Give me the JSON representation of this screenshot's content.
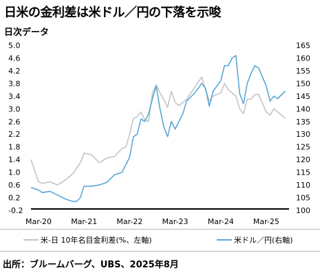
{
  "title": "日米の金利差は米ドル／円の下落を示唆",
  "subtitle": "日次データ",
  "source": "出所：ブルームバーグ、UBS、2025年8月",
  "chart_data": {
    "type": "line",
    "x_tick_labels": [
      "Mar-20",
      "Mar-21",
      "Mar-22",
      "Mar-23",
      "Mar-24",
      "Mar-25"
    ],
    "y_left": {
      "ticks": [
        "5.0",
        "4.6",
        "4.2",
        "3.8",
        "3.4",
        "3.0",
        "2.6",
        "2.2",
        "1.8",
        "1.4",
        "1.0",
        "0.6",
        "0.2",
        "-0.2"
      ],
      "ylim": [
        -0.2,
        5.0
      ]
    },
    "y_right": {
      "ticks": [
        "165",
        "160",
        "155",
        "150",
        "145",
        "140",
        "135",
        "130",
        "125",
        "120",
        "115",
        "110",
        "105",
        "100"
      ],
      "ylim": [
        100,
        165
      ]
    },
    "grid": false,
    "legend_position": "bottom",
    "series": [
      {
        "name": "米-日 10年名目金利差(%、左軸)",
        "axis": "left",
        "color": "#c4c4c4",
        "points": [
          [
            "2020-01",
            1.4
          ],
          [
            "2020-03",
            0.7
          ],
          [
            "2020-04",
            0.65
          ],
          [
            "2020-06",
            0.7
          ],
          [
            "2020-08",
            0.6
          ],
          [
            "2020-10",
            0.75
          ],
          [
            "2020-12",
            0.95
          ],
          [
            "2021-02",
            1.3
          ],
          [
            "2021-03",
            1.6
          ],
          [
            "2021-05",
            1.55
          ],
          [
            "2021-07",
            1.3
          ],
          [
            "2021-09",
            1.45
          ],
          [
            "2021-11",
            1.5
          ],
          [
            "2022-01",
            1.75
          ],
          [
            "2022-02",
            1.8
          ],
          [
            "2022-03",
            2.2
          ],
          [
            "2022-04",
            2.7
          ],
          [
            "2022-05",
            2.75
          ],
          [
            "2022-06",
            2.9
          ],
          [
            "2022-07",
            2.65
          ],
          [
            "2022-08",
            2.6
          ],
          [
            "2022-09",
            3.5
          ],
          [
            "2022-10",
            3.75
          ],
          [
            "2022-11",
            3.5
          ],
          [
            "2022-12",
            3.3
          ],
          [
            "2023-01",
            3.05
          ],
          [
            "2023-02",
            3.55
          ],
          [
            "2023-03",
            3.2
          ],
          [
            "2023-04",
            3.1
          ],
          [
            "2023-06",
            3.3
          ],
          [
            "2023-08",
            3.65
          ],
          [
            "2023-10",
            4.0
          ],
          [
            "2023-11",
            3.6
          ],
          [
            "2023-12",
            3.25
          ],
          [
            "2024-01",
            3.4
          ],
          [
            "2024-03",
            3.5
          ],
          [
            "2024-04",
            3.8
          ],
          [
            "2024-05",
            3.6
          ],
          [
            "2024-07",
            3.4
          ],
          [
            "2024-08",
            3.0
          ],
          [
            "2024-09",
            2.85
          ],
          [
            "2024-10",
            3.3
          ],
          [
            "2024-11",
            3.3
          ],
          [
            "2024-12",
            3.45
          ],
          [
            "2025-01",
            3.45
          ],
          [
            "2025-03",
            2.9
          ],
          [
            "2025-04",
            2.8
          ],
          [
            "2025-05",
            3.0
          ],
          [
            "2025-06",
            2.9
          ],
          [
            "2025-08",
            2.7
          ]
        ]
      },
      {
        "name": "米ドル／円(右軸)",
        "axis": "right",
        "color": "#5aa6d6",
        "points": [
          [
            "2020-01",
            109
          ],
          [
            "2020-03",
            108
          ],
          [
            "2020-04",
            107
          ],
          [
            "2020-06",
            107.5
          ],
          [
            "2020-08",
            106
          ],
          [
            "2020-10",
            104.5
          ],
          [
            "2020-12",
            103.5
          ],
          [
            "2021-01",
            103.5
          ],
          [
            "2021-02",
            105
          ],
          [
            "2021-03",
            109.5
          ],
          [
            "2021-05",
            109.5
          ],
          [
            "2021-07",
            110
          ],
          [
            "2021-09",
            111
          ],
          [
            "2021-11",
            114
          ],
          [
            "2022-01",
            115
          ],
          [
            "2022-03",
            121
          ],
          [
            "2022-04",
            129
          ],
          [
            "2022-05",
            130
          ],
          [
            "2022-06",
            136
          ],
          [
            "2022-07",
            135
          ],
          [
            "2022-08",
            138
          ],
          [
            "2022-09",
            144
          ],
          [
            "2022-10",
            149
          ],
          [
            "2022-11",
            140
          ],
          [
            "2022-12",
            133
          ],
          [
            "2023-01",
            129
          ],
          [
            "2023-02",
            135
          ],
          [
            "2023-03",
            132
          ],
          [
            "2023-05",
            138
          ],
          [
            "2023-06",
            143
          ],
          [
            "2023-08",
            146
          ],
          [
            "2023-10",
            150
          ],
          [
            "2023-11",
            148
          ],
          [
            "2023-12",
            141
          ],
          [
            "2024-01",
            147
          ],
          [
            "2024-03",
            151
          ],
          [
            "2024-04",
            157
          ],
          [
            "2024-05",
            157
          ],
          [
            "2024-06",
            160
          ],
          [
            "2024-07",
            161
          ],
          [
            "2024-08",
            146
          ],
          [
            "2024-09",
            142
          ],
          [
            "2024-10",
            150
          ],
          [
            "2024-11",
            154
          ],
          [
            "2024-12",
            157
          ],
          [
            "2025-01",
            156
          ],
          [
            "2025-03",
            149
          ],
          [
            "2025-04",
            143
          ],
          [
            "2025-05",
            145
          ],
          [
            "2025-06",
            144
          ],
          [
            "2025-08",
            147
          ]
        ]
      }
    ]
  }
}
